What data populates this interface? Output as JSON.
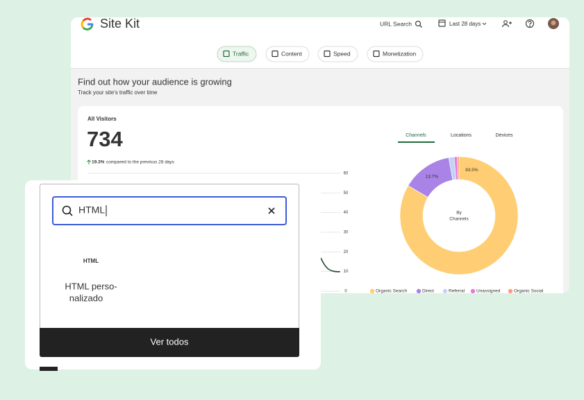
{
  "header": {
    "brand": "Site Kit",
    "url_search": "URL Search",
    "date_range": "Last 28 days"
  },
  "tabs": [
    "Traffic",
    "Content",
    "Speed",
    "Monetization"
  ],
  "section": {
    "title": "Find out how your audience is growing",
    "subtitle": "Track your site's traffic over time"
  },
  "visitors": {
    "label": "All Visitors",
    "value": "734",
    "change": "19.3%",
    "change_text": "compared to the previous 28 days"
  },
  "line_axis": {
    "yticks": [
      0,
      10,
      20,
      30,
      40,
      50,
      60
    ],
    "ylim": [
      0,
      60
    ]
  },
  "breakdown_tabs": [
    "Channels",
    "Locations",
    "Devices"
  ],
  "chart_data": {
    "type": "pie",
    "center_label": [
      "By",
      "Channels"
    ],
    "categories": [
      "Organic Search",
      "Direct",
      "Referral",
      "Unassigned",
      "Organic Social"
    ],
    "values": [
      83.5,
      13.7,
      1.5,
      0.8,
      0.5
    ],
    "value_labels": [
      "83.5%",
      "13.7%",
      null,
      null,
      null
    ],
    "colors": [
      "#ffcd73",
      "#a983e6",
      "#c3d3f5",
      "#e77ad6",
      "#ff9b7a"
    ]
  },
  "popup": {
    "query": "HTML",
    "results": [
      {
        "lines": [
          "HTML"
        ]
      },
      {
        "lines": [
          "HTML perso-",
          "nalizado"
        ]
      }
    ],
    "button": "Ver todos"
  }
}
